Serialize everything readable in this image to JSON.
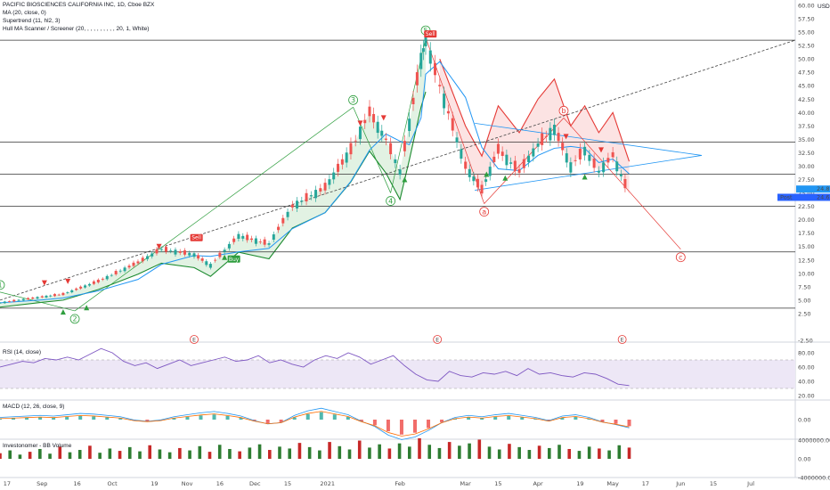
{
  "legend": {
    "symbol": "PACIFIC BIOSCIENCES CALIFORNIA INC, 1D, Cboe BZX",
    "ma": "MA (20, close, 0)",
    "supertrend": "Supertrend (11, hl2, 3)",
    "hull": "Hull MA Scanner / Screener (20, , , , , , , , , , 20, 1, White)",
    "rsi": "RSI (14, close)",
    "macd": "MACD (12, 26, close, 9)",
    "volume": "Investonomer - BB Volume"
  },
  "currency": "USD",
  "colors": {
    "up": "#26a69a",
    "down": "#ef5350",
    "ma": "#2196f3",
    "st_up": "#1b8a2e",
    "st_down": "#e53935",
    "wave_green": "#2e9e3e",
    "wave_red": "#e53935",
    "rsi_band": "#ede7f6",
    "rsi_line": "#7e57c2",
    "trendline": "#444444",
    "triangle": "#2196f3"
  },
  "price_axis": {
    "ticks": [
      "60.00",
      "57.50",
      "55.00",
      "52.50",
      "50.00",
      "47.50",
      "45.00",
      "42.50",
      "40.00",
      "37.50",
      "35.00",
      "32.50",
      "30.00",
      "27.50",
      "25.00",
      "22.50",
      "20.00",
      "17.50",
      "15.00",
      "12.50",
      "10.00",
      "7.50",
      "5.00",
      "2.50",
      "-2.50"
    ],
    "last_price": "24.89",
    "post_label": "Post",
    "post_price": "24.68"
  },
  "rsi_axis": {
    "ticks": [
      "80.00",
      "60.00",
      "40.00",
      "20.00"
    ]
  },
  "macd_axis": {
    "ticks": [
      "0.00"
    ]
  },
  "volume_axis": {
    "ticks": [
      "4000000.00",
      "0.00",
      "-4000000.00"
    ]
  },
  "time_axis": {
    "ticks": [
      "17",
      "Sep",
      "16",
      "Oct",
      "19",
      "Nov",
      "16",
      "Dec",
      "15",
      "2021",
      "Feb",
      "Mar",
      "15",
      "Apr",
      "19",
      "May",
      "17",
      "Jun",
      "15",
      "Jul"
    ]
  },
  "tags": {
    "sell": "Sell",
    "buy": "Buy"
  },
  "waves": [
    "1",
    "2",
    "3",
    "4",
    "5",
    "a",
    "b",
    "c"
  ],
  "earnings_marker": "E",
  "chart_data": {
    "type": "line",
    "title": "PACIFIC BIOSCIENCES CALIFORNIA INC, 1D, Cboe BZX",
    "ylim": [
      -2.5,
      60
    ],
    "x_range": [
      "2020-08-14",
      "2021-07-20"
    ],
    "price_path": [
      {
        "date": "2020-08-14",
        "close": 4.5
      },
      {
        "date": "2020-09-01",
        "close": 5.6
      },
      {
        "date": "2020-09-10",
        "close": 6.1
      },
      {
        "date": "2020-09-25",
        "close": 8.5
      },
      {
        "date": "2020-10-12",
        "close": 12.0
      },
      {
        "date": "2020-10-22",
        "close": 14.5
      },
      {
        "date": "2020-11-05",
        "close": 13.5
      },
      {
        "date": "2020-11-12",
        "close": 11.5
      },
      {
        "date": "2020-11-24",
        "close": 17.0
      },
      {
        "date": "2020-12-07",
        "close": 15.5
      },
      {
        "date": "2020-12-17",
        "close": 22.5
      },
      {
        "date": "2020-12-31",
        "close": 26.0
      },
      {
        "date": "2021-01-11",
        "close": 33.0
      },
      {
        "date": "2021-01-19",
        "close": 40.0
      },
      {
        "date": "2021-01-26",
        "close": 35.0
      },
      {
        "date": "2021-02-01",
        "close": 29.0
      },
      {
        "date": "2021-02-05",
        "close": 38.0
      },
      {
        "date": "2021-02-10",
        "close": 50.0
      },
      {
        "date": "2021-02-12",
        "close": 53.5
      },
      {
        "date": "2021-02-18",
        "close": 45.0
      },
      {
        "date": "2021-03-01",
        "close": 30.0
      },
      {
        "date": "2021-03-08",
        "close": 25.5
      },
      {
        "date": "2021-03-15",
        "close": 33.0
      },
      {
        "date": "2021-03-24",
        "close": 29.0
      },
      {
        "date": "2021-04-01",
        "close": 34.0
      },
      {
        "date": "2021-04-08",
        "close": 37.0
      },
      {
        "date": "2021-04-15",
        "close": 30.0
      },
      {
        "date": "2021-04-21",
        "close": 33.0
      },
      {
        "date": "2021-04-27",
        "close": 29.0
      },
      {
        "date": "2021-05-03",
        "close": 32.0
      },
      {
        "date": "2021-05-10",
        "close": 24.7
      }
    ],
    "horizontal_levels": [
      53.5,
      34.5,
      28.5,
      22.5,
      14.0,
      3.5
    ],
    "trendline": {
      "from": {
        "date": "2020-08-14",
        "value": 5.0
      },
      "to": {
        "date": "2021-07-20",
        "value": 53.5
      }
    },
    "triangle": {
      "apex": {
        "date": "2021-06-10",
        "value": 32.0
      },
      "upper_start": {
        "date": "2021-03-05",
        "value": 38.0
      },
      "lower_start": {
        "date": "2021-03-05",
        "value": 25.5
      }
    },
    "wave_points": [
      {
        "label": "1",
        "date": "2020-08-14",
        "value": 6.5
      },
      {
        "label": "2",
        "date": "2020-09-15",
        "value": 3.0
      },
      {
        "label": "3",
        "date": "2021-01-12",
        "value": 41.0
      },
      {
        "label": "4",
        "date": "2021-01-28",
        "value": 25.0
      },
      {
        "label": "5",
        "date": "2021-02-12",
        "value": 54.0
      },
      {
        "label": "a",
        "date": "2021-03-09",
        "value": 23.0
      },
      {
        "label": "b",
        "date": "2021-04-12",
        "value": 39.0
      },
      {
        "label": "c",
        "date": "2021-06-01",
        "value": 14.5
      }
    ],
    "rsi": {
      "ylim": [
        15,
        90
      ],
      "band": [
        30,
        70
      ],
      "values": [
        60,
        64,
        68,
        66,
        72,
        70,
        74,
        70,
        78,
        86,
        80,
        68,
        62,
        66,
        58,
        64,
        70,
        62,
        66,
        70,
        74,
        68,
        70,
        76,
        66,
        70,
        64,
        60,
        70,
        76,
        72,
        80,
        74,
        64,
        70,
        76,
        62,
        50,
        42,
        40,
        54,
        48,
        46,
        52,
        50,
        54,
        48,
        58,
        50,
        52,
        48,
        46,
        52,
        50,
        44,
        36,
        34
      ]
    },
    "macd": {
      "ylim": [
        -4,
        4
      ],
      "histogram": [
        0.2,
        0.3,
        0.4,
        0.5,
        0.4,
        0.6,
        0.8,
        0.7,
        0.5,
        0.3,
        -0.2,
        -0.4,
        -0.2,
        0.3,
        0.6,
        0.9,
        1.1,
        0.8,
        0.4,
        -0.3,
        -0.8,
        -0.6,
        0.5,
        1.2,
        1.6,
        1.1,
        0.6,
        -0.4,
        -1.2,
        -2.5,
        -3.2,
        -2.8,
        -1.8,
        -0.6,
        0.2,
        0.5,
        0.3,
        0.6,
        0.8,
        0.5,
        0.2,
        -0.3,
        0.4,
        0.6,
        0.2,
        -0.5,
        -0.9,
        -1.4
      ]
    },
    "volume": {
      "ylim": [
        -4000000,
        4000000
      ],
      "values": [
        1.2,
        1.8,
        0.9,
        1.5,
        2.1,
        1.1,
        2.6,
        1.4,
        1.9,
        2.8,
        1.3,
        2.2,
        1.7,
        2.5,
        1.6,
        2.9,
        2.0,
        1.4,
        2.3,
        1.8,
        2.7,
        1.5,
        3.0,
        2.1,
        1.6,
        2.4,
        3.1,
        1.9,
        2.6,
        2.2,
        3.4,
        2.5,
        1.8,
        3.6,
        2.7,
        2.0,
        3.9,
        2.4,
        3.1,
        2.2,
        3.3,
        2.6,
        4.4,
        3.0,
        2.3,
        3.6,
        2.8,
        3.3,
        4.1,
        2.6,
        2.0,
        3.2,
        2.5,
        1.9,
        2.8,
        2.3,
        3.0,
        2.1,
        1.7,
        2.6,
        2.2,
        1.8,
        2.9,
        2.4
      ]
    }
  }
}
